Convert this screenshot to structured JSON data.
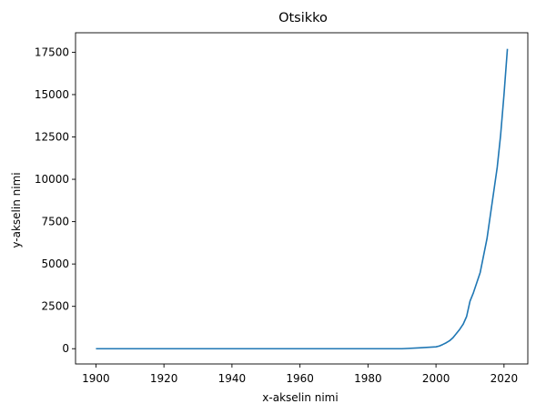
{
  "chart_data": {
    "type": "line",
    "title": "Otsikko",
    "xlabel": "x-akselin nimi",
    "ylabel": "y-akselin nimi",
    "xlim": [
      1894,
      2027
    ],
    "ylim": [
      -900,
      18650
    ],
    "xticks": [
      1900,
      1920,
      1940,
      1960,
      1980,
      2000,
      2020
    ],
    "yticks": [
      0,
      2500,
      5000,
      7500,
      10000,
      12500,
      15000,
      17500
    ],
    "grid": false,
    "line_color": "#1f77b4",
    "series": [
      {
        "x": [
          1900,
          1910,
          1920,
          1930,
          1940,
          1950,
          1960,
          1970,
          1980,
          1990,
          1995,
          2000,
          2001,
          2002,
          2003,
          2004,
          2005,
          2006,
          2007,
          2008,
          2009,
          2010,
          2011,
          2012,
          2013,
          2014,
          2015,
          2016,
          2017,
          2018,
          2019,
          2020,
          2021
        ],
        "y": [
          0,
          0,
          0,
          0,
          0,
          0,
          0,
          0,
          0,
          0,
          50,
          110,
          160,
          250,
          350,
          470,
          650,
          900,
          1150,
          1450,
          1900,
          2800,
          3300,
          3900,
          4500,
          5500,
          6500,
          7900,
          9300,
          10700,
          12600,
          15000,
          17700
        ]
      }
    ]
  }
}
